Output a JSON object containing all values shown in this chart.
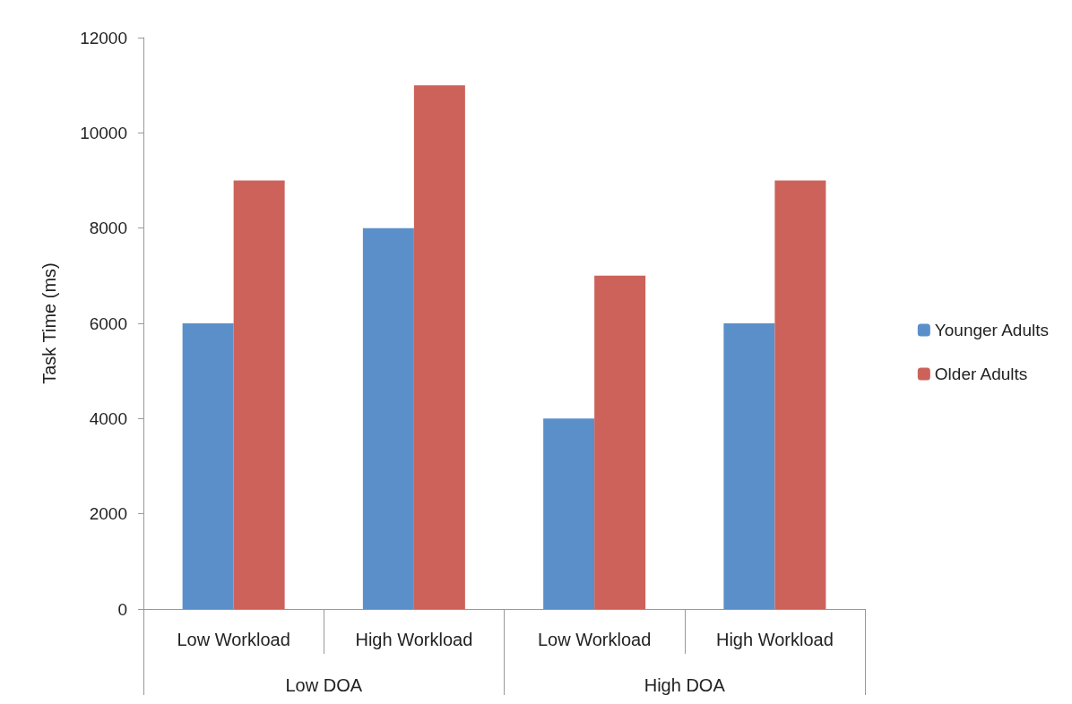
{
  "chart_data": {
    "type": "bar",
    "ylabel": "Task Time (ms)",
    "categories": [
      "Low Workload",
      "High Workload",
      "Low Workload",
      "High Workload"
    ],
    "series": [
      {
        "name": "Younger Adults",
        "color": "#5b8fc9",
        "values": [
          6000,
          8000,
          4000,
          6000
        ]
      },
      {
        "name": "Older Adults",
        "color": "#cc625a",
        "values": [
          9000,
          11000,
          7000,
          9000
        ]
      }
    ],
    "annotations": [
      "Low DOA",
      "High DOA"
    ],
    "ylim": [
      0,
      12000
    ],
    "yticks": [
      0,
      2000,
      4000,
      6000,
      8000,
      10000,
      12000
    ],
    "grid": false,
    "legend": "right"
  }
}
